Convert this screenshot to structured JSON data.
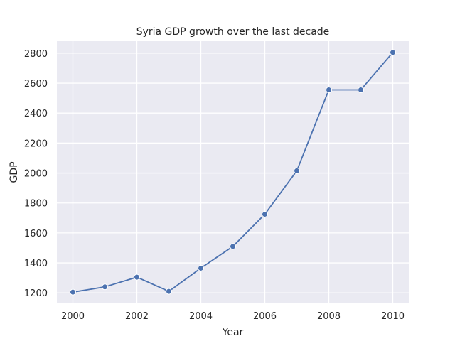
{
  "chart_data": {
    "type": "line",
    "title": "Syria GDP growth over the last decade",
    "xlabel": "Year",
    "ylabel": "GDP",
    "x": [
      2000,
      2001,
      2002,
      2003,
      2004,
      2005,
      2006,
      2007,
      2008,
      2009,
      2010
    ],
    "series": [
      {
        "values": [
          1205,
          1240,
          1305,
          1210,
          1365,
          1510,
          1725,
          2015,
          2555,
          2555,
          2805
        ]
      }
    ],
    "xlim": [
      1999.5,
      2010.5
    ],
    "ylim": [
      1130,
      2880
    ],
    "xticks": [
      2000,
      2002,
      2004,
      2006,
      2008,
      2010
    ],
    "yticks": [
      1200,
      1400,
      1600,
      1800,
      2000,
      2200,
      2400,
      2600,
      2800
    ],
    "grid": true,
    "line_color": "#4c72b0",
    "background_color": "#eaeaf2"
  }
}
